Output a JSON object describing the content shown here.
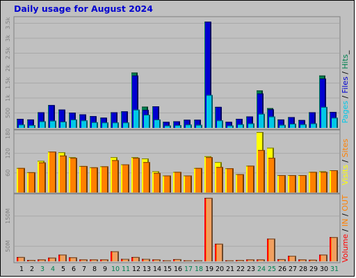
{
  "title": "Daily usage for August 2024",
  "colors": {
    "hits": "#00804f",
    "files": "#0000d0",
    "pages": "#00c8e8",
    "visits": "#ffff00",
    "sites": "#ff8000",
    "volume": "#ff0000",
    "kbin": "#ff8000",
    "kbout": "#ff8000",
    "weekday_label": "#000000",
    "weekend_label": "#00804f"
  },
  "side_labels": {
    "panel1": [
      {
        "text": "Pages",
        "color": "#00c8e8"
      },
      {
        "text": " / ",
        "color": "#000000"
      },
      {
        "text": "Files",
        "color": "#0000d0"
      },
      {
        "text": " / ",
        "color": "#000000"
      },
      {
        "text": "Hits",
        "color": "#00804f"
      },
      {
        "text": "_",
        "color": "#000000"
      }
    ],
    "panel2": [
      {
        "text": "Visits",
        "color": "#ffff00"
      },
      {
        "text": " / ",
        "color": "#000000"
      },
      {
        "text": "Sites",
        "color": "#ff8000"
      }
    ],
    "panel3": [
      {
        "text": "Volume",
        "color": "#ff0000"
      },
      {
        "text": " / ",
        "color": "#000000"
      },
      {
        "text": "IN",
        "color": "#ff8000"
      },
      {
        "text": " / ",
        "color": "#000000"
      },
      {
        "text": "OUT",
        "color": "#ff8000"
      }
    ]
  },
  "chart_data": [
    {
      "type": "bar",
      "title": "Daily usage for August 2024",
      "panel": "hits_files_pages",
      "categories": [
        "1",
        "2",
        "3",
        "4",
        "5",
        "6",
        "7",
        "8",
        "9",
        "10",
        "11",
        "12",
        "13",
        "14",
        "15",
        "16",
        "17",
        "18",
        "19",
        "20",
        "21",
        "22",
        "23",
        "24",
        "25",
        "26",
        "27",
        "28",
        "29",
        "30",
        "31"
      ],
      "weekend": [
        3,
        4,
        10,
        11,
        17,
        18,
        24,
        25,
        31
      ],
      "yticks": [
        {
          "label": "500",
          "value": 500
        },
        {
          "label": "1k",
          "value": 1000
        },
        {
          "label": "1.5k",
          "value": 1500
        },
        {
          "label": "2k",
          "value": 2000
        },
        {
          "label": "2.5k",
          "value": 2500
        },
        {
          "label": "3k",
          "value": 3000
        },
        {
          "label": "3.5k",
          "value": 3500
        }
      ],
      "ylim": [
        0,
        3650
      ],
      "series": [
        {
          "name": "Hits",
          "values": [
            300,
            280,
            520,
            760,
            610,
            510,
            450,
            390,
            340,
            520,
            550,
            1850,
            710,
            720,
            200,
            220,
            270,
            270,
            3550,
            700,
            200,
            300,
            380,
            1250,
            660,
            280,
            360,
            260,
            520,
            1750,
            530
          ]
        },
        {
          "name": "Files",
          "values": [
            300,
            280,
            520,
            760,
            610,
            510,
            450,
            390,
            340,
            520,
            550,
            1750,
            600,
            720,
            200,
            220,
            270,
            270,
            3550,
            700,
            200,
            300,
            380,
            1150,
            620,
            280,
            360,
            260,
            520,
            1650,
            530
          ]
        },
        {
          "name": "Pages",
          "values": [
            110,
            90,
            220,
            240,
            210,
            280,
            250,
            190,
            180,
            180,
            180,
            610,
            440,
            280,
            80,
            90,
            110,
            100,
            1100,
            250,
            80,
            120,
            150,
            470,
            380,
            100,
            140,
            120,
            150,
            700,
            340
          ]
        }
      ]
    },
    {
      "type": "bar",
      "panel": "visits_sites",
      "categories": [
        "1",
        "2",
        "3",
        "4",
        "5",
        "6",
        "7",
        "8",
        "9",
        "10",
        "11",
        "12",
        "13",
        "14",
        "15",
        "16",
        "17",
        "18",
        "19",
        "20",
        "21",
        "22",
        "23",
        "24",
        "25",
        "26",
        "27",
        "28",
        "29",
        "30",
        "31"
      ],
      "yticks": [
        {
          "label": "60",
          "value": 60
        },
        {
          "label": "120",
          "value": 120
        },
        {
          "label": "180",
          "value": 180
        }
      ],
      "ylim": [
        0,
        185
      ],
      "series": [
        {
          "name": "Visits",
          "values": [
            75,
            62,
            97,
            125,
            123,
            108,
            81,
            77,
            80,
            108,
            86,
            108,
            104,
            65,
            52,
            63,
            52,
            75,
            111,
            93,
            74,
            56,
            82,
            185,
            137,
            53,
            53,
            53,
            63,
            65,
            68
          ]
        },
        {
          "name": "Sites",
          "values": [
            75,
            62,
            92,
            125,
            113,
            106,
            81,
            77,
            80,
            99,
            86,
            106,
            93,
            60,
            52,
            63,
            52,
            75,
            108,
            78,
            74,
            56,
            82,
            130,
            106,
            53,
            53,
            53,
            63,
            63,
            68
          ]
        }
      ]
    },
    {
      "type": "bar",
      "panel": "volume",
      "categories": [
        "1",
        "2",
        "3",
        "4",
        "5",
        "6",
        "7",
        "8",
        "9",
        "10",
        "11",
        "12",
        "13",
        "14",
        "15",
        "16",
        "17",
        "18",
        "19",
        "20",
        "21",
        "22",
        "23",
        "24",
        "25",
        "26",
        "27",
        "28",
        "29",
        "30",
        "31"
      ],
      "yticks": [
        {
          "label": "50M",
          "value": 50
        },
        {
          "label": "150M",
          "value": 150
        }
      ],
      "ylim": [
        0,
        212
      ],
      "series": [
        {
          "name": "Volume",
          "values": [
            14,
            4,
            6,
            12,
            22,
            13,
            6,
            6,
            6,
            33,
            8,
            14,
            8,
            6,
            3,
            7,
            3,
            3,
            210,
            58,
            3,
            4,
            6,
            6,
            75,
            7,
            18,
            6,
            5,
            22,
            80
          ]
        },
        {
          "name": "KB In",
          "values": [
            14,
            4,
            6,
            12,
            22,
            13,
            6,
            6,
            6,
            33,
            8,
            14,
            8,
            6,
            3,
            7,
            3,
            3,
            210,
            58,
            3,
            4,
            6,
            6,
            75,
            7,
            18,
            6,
            5,
            22,
            80
          ]
        },
        {
          "name": "KB Out",
          "values": [
            14,
            4,
            6,
            12,
            22,
            13,
            6,
            6,
            6,
            33,
            8,
            14,
            8,
            6,
            3,
            7,
            3,
            3,
            210,
            58,
            3,
            4,
            6,
            6,
            75,
            7,
            18,
            6,
            5,
            22,
            80
          ]
        }
      ]
    }
  ]
}
